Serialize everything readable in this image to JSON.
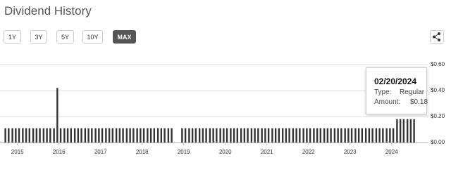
{
  "header": {
    "title": "Dividend History",
    "range_buttons": [
      "1Y",
      "3Y",
      "5Y",
      "10Y",
      "MAX"
    ]
  },
  "chart_data": {
    "type": "bar",
    "color": "#333333",
    "grid": true,
    "x": [
      2014.71,
      2014.79,
      2014.88,
      2014.96,
      2015.04,
      2015.13,
      2015.21,
      2015.29,
      2015.38,
      2015.46,
      2015.54,
      2015.63,
      2015.71,
      2015.79,
      2015.88,
      2015.96,
      2016.04,
      2016.13,
      2016.21,
      2016.29,
      2016.38,
      2016.46,
      2016.54,
      2016.63,
      2016.71,
      2016.79,
      2016.88,
      2016.96,
      2017.04,
      2017.13,
      2017.21,
      2017.29,
      2017.38,
      2017.46,
      2017.54,
      2017.63,
      2017.71,
      2017.79,
      2017.88,
      2017.96,
      2018.04,
      2018.13,
      2018.21,
      2018.29,
      2018.38,
      2018.46,
      2018.54,
      2018.63,
      2018.71,
      2018.96,
      2019.04,
      2019.13,
      2019.21,
      2019.29,
      2019.38,
      2019.46,
      2019.54,
      2019.63,
      2019.71,
      2019.79,
      2019.88,
      2019.96,
      2020.04,
      2020.13,
      2020.21,
      2020.29,
      2020.38,
      2020.46,
      2020.54,
      2020.63,
      2020.71,
      2020.79,
      2020.88,
      2020.96,
      2021.04,
      2021.13,
      2021.21,
      2021.29,
      2021.38,
      2021.46,
      2021.54,
      2021.63,
      2021.71,
      2021.79,
      2021.88,
      2021.96,
      2022.04,
      2022.13,
      2022.21,
      2022.29,
      2022.38,
      2022.46,
      2022.54,
      2022.63,
      2022.71,
      2022.79,
      2022.88,
      2022.96,
      2023.04,
      2023.13,
      2023.21,
      2023.29,
      2023.38,
      2023.46,
      2023.54,
      2023.63,
      2023.71,
      2023.79,
      2023.88,
      2023.96,
      2024.04,
      2024.13,
      2024.21,
      2024.29,
      2024.38,
      2024.46,
      2024.54
    ],
    "values": [
      0.11,
      0.11,
      0.11,
      0.11,
      0.11,
      0.11,
      0.11,
      0.11,
      0.11,
      0.11,
      0.11,
      0.11,
      0.11,
      0.11,
      0.11,
      0.42,
      0.11,
      0.11,
      0.11,
      0.11,
      0.11,
      0.11,
      0.11,
      0.11,
      0.11,
      0.11,
      0.11,
      0.11,
      0.11,
      0.11,
      0.11,
      0.11,
      0.11,
      0.11,
      0.11,
      0.11,
      0.11,
      0.11,
      0.11,
      0.11,
      0.11,
      0.11,
      0.11,
      0.11,
      0.11,
      0.11,
      0.11,
      0.11,
      0.11,
      0.11,
      0.11,
      0.11,
      0.11,
      0.11,
      0.11,
      0.11,
      0.11,
      0.11,
      0.11,
      0.11,
      0.11,
      0.11,
      0.11,
      0.11,
      0.11,
      0.11,
      0.11,
      0.11,
      0.11,
      0.11,
      0.11,
      0.11,
      0.11,
      0.11,
      0.11,
      0.11,
      0.11,
      0.11,
      0.11,
      0.11,
      0.11,
      0.11,
      0.11,
      0.11,
      0.11,
      0.11,
      0.11,
      0.11,
      0.11,
      0.11,
      0.11,
      0.11,
      0.11,
      0.11,
      0.11,
      0.11,
      0.11,
      0.11,
      0.11,
      0.11,
      0.11,
      0.11,
      0.11,
      0.11,
      0.11,
      0.11,
      0.11,
      0.11,
      0.11,
      0.11,
      0.11,
      0.18,
      0.18,
      0.18,
      0.18,
      0.18,
      0.18
    ],
    "xlim": [
      2014.7,
      2024.75
    ],
    "xticks": [
      2015,
      2016,
      2017,
      2018,
      2019,
      2020,
      2021,
      2022,
      2023,
      2024
    ],
    "ylim": [
      0,
      0.6
    ],
    "yticks": [
      {
        "value": 0,
        "label": "$0.00"
      },
      {
        "value": 0.2,
        "label": "$0.20"
      },
      {
        "value": 0.4,
        "label": "$0.40"
      },
      {
        "value": 0.6,
        "label": "$0.60"
      }
    ],
    "tooltip": {
      "date": "02/20/2024",
      "type_label": "Type:",
      "type": "Regular",
      "amount_label": "Amount:",
      "amount": "$0.18"
    }
  }
}
